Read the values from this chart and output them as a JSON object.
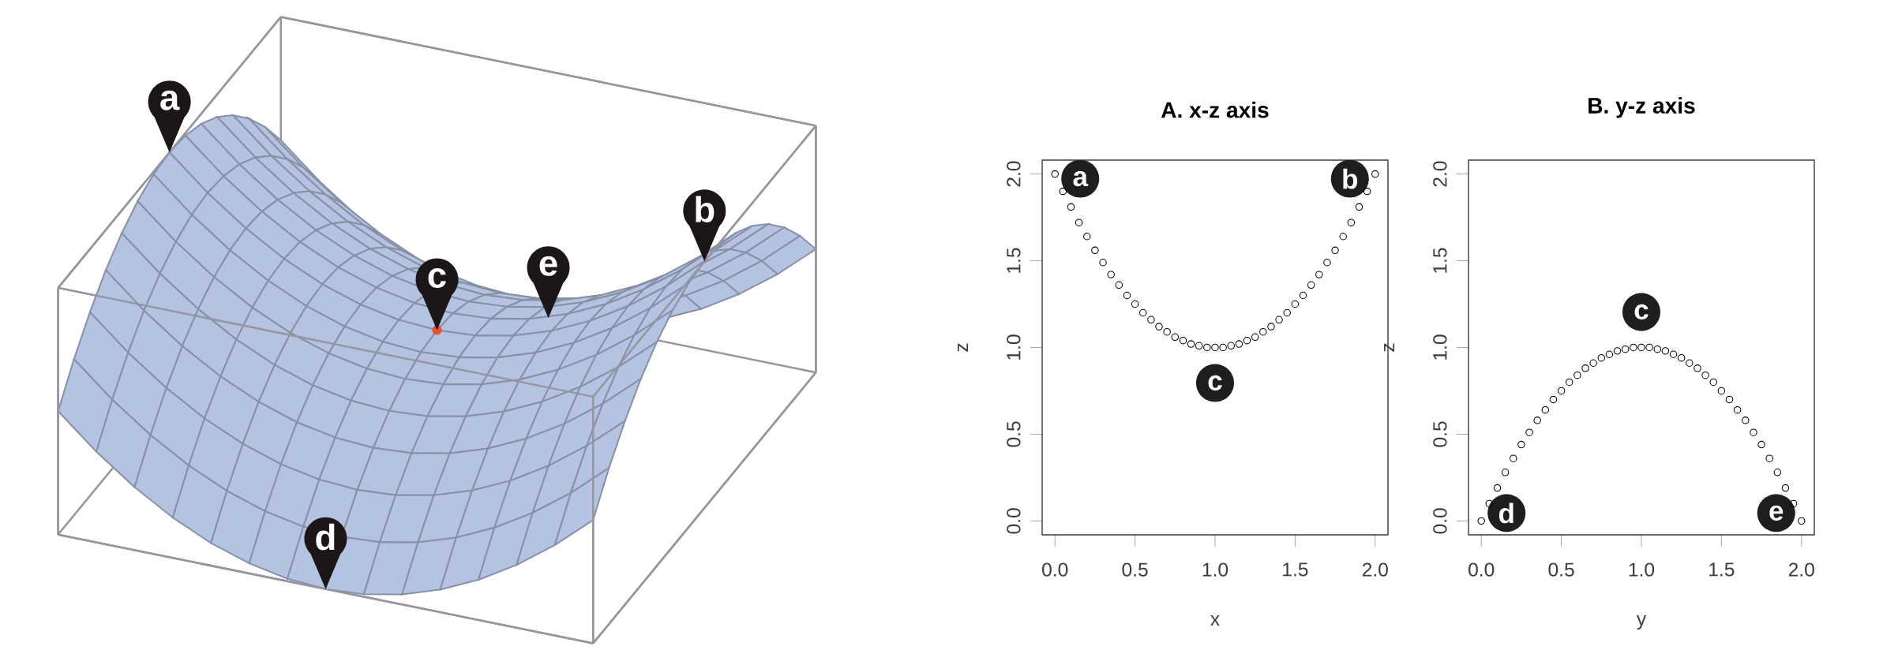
{
  "chart_data": [
    {
      "type": "other",
      "annotations": [
        "a",
        "b",
        "c",
        "d",
        "e"
      ]
    },
    {
      "type": "scatter",
      "title": "A. x-z axis",
      "xlabel": "x",
      "ylabel": "z",
      "marker": "circle",
      "color": "#000000",
      "x": [
        0,
        0.05,
        0.1,
        0.15,
        0.2,
        0.25,
        0.3,
        0.35,
        0.4,
        0.45,
        0.5,
        0.55,
        0.6,
        0.65,
        0.7,
        0.75,
        0.8,
        0.85,
        0.9,
        0.95,
        1,
        1.05,
        1.1,
        1.15,
        1.2,
        1.25,
        1.3,
        1.35,
        1.4,
        1.45,
        1.5,
        1.55,
        1.6,
        1.65,
        1.7,
        1.75,
        1.8,
        1.85,
        1.9,
        1.95,
        2
      ],
      "values": [
        2,
        1.9,
        1.81,
        1.72,
        1.64,
        1.56,
        1.49,
        1.42,
        1.36,
        1.3,
        1.25,
        1.2,
        1.16,
        1.12,
        1.09,
        1.06,
        1.04,
        1.02,
        1.01,
        1.0,
        1.0,
        1.0,
        1.01,
        1.02,
        1.04,
        1.06,
        1.09,
        1.12,
        1.16,
        1.2,
        1.25,
        1.3,
        1.36,
        1.42,
        1.49,
        1.56,
        1.64,
        1.72,
        1.81,
        1.9,
        2
      ],
      "xlim": [
        -0.08,
        2.08
      ],
      "ylim": [
        -0.08,
        2.08
      ],
      "xticks": [
        {
          "value": 0,
          "label": "0.0"
        },
        {
          "value": 0.5,
          "label": "0.5"
        },
        {
          "value": 1,
          "label": "1.0"
        },
        {
          "value": 1.5,
          "label": "1.5"
        },
        {
          "value": 2,
          "label": "2.0"
        }
      ],
      "yticks": [
        {
          "value": 0,
          "label": "0.0"
        },
        {
          "value": 0.5,
          "label": "0.5"
        },
        {
          "value": 1,
          "label": "1.0"
        },
        {
          "value": 1.5,
          "label": "1.5"
        },
        {
          "value": 2,
          "label": "2.0"
        }
      ],
      "annotations": [
        {
          "text": "a",
          "x": 0,
          "y": 2
        },
        {
          "text": "b",
          "x": 2,
          "y": 2
        },
        {
          "text": "c",
          "x": 1,
          "y": 1
        }
      ]
    },
    {
      "type": "scatter",
      "title": "B. y-z axis",
      "xlabel": "y",
      "ylabel": "z",
      "marker": "circle",
      "color": "#000000",
      "x": [
        0,
        0.05,
        0.1,
        0.15,
        0.2,
        0.25,
        0.3,
        0.35,
        0.4,
        0.45,
        0.5,
        0.55,
        0.6,
        0.65,
        0.7,
        0.75,
        0.8,
        0.85,
        0.9,
        0.95,
        1,
        1.05,
        1.1,
        1.15,
        1.2,
        1.25,
        1.3,
        1.35,
        1.4,
        1.45,
        1.5,
        1.55,
        1.6,
        1.65,
        1.7,
        1.75,
        1.8,
        1.85,
        1.9,
        1.95,
        2
      ],
      "values": [
        0,
        0.1,
        0.19,
        0.28,
        0.36,
        0.44,
        0.51,
        0.58,
        0.64,
        0.7,
        0.75,
        0.8,
        0.84,
        0.88,
        0.91,
        0.94,
        0.96,
        0.98,
        0.99,
        1.0,
        1.0,
        1.0,
        0.99,
        0.98,
        0.96,
        0.94,
        0.91,
        0.88,
        0.84,
        0.8,
        0.75,
        0.7,
        0.64,
        0.58,
        0.51,
        0.44,
        0.36,
        0.28,
        0.19,
        0.1,
        0
      ],
      "xlim": [
        -0.08,
        2.08
      ],
      "ylim": [
        -0.08,
        2.08
      ],
      "xticks": [
        {
          "value": 0,
          "label": "0.0"
        },
        {
          "value": 0.5,
          "label": "0.5"
        },
        {
          "value": 1,
          "label": "1.0"
        },
        {
          "value": 1.5,
          "label": "1.5"
        },
        {
          "value": 2,
          "label": "2.0"
        }
      ],
      "yticks": [
        {
          "value": 0,
          "label": "0.0"
        },
        {
          "value": 0.5,
          "label": "0.5"
        },
        {
          "value": 1,
          "label": "1.0"
        },
        {
          "value": 1.5,
          "label": "1.5"
        },
        {
          "value": 2,
          "label": "2.0"
        }
      ],
      "annotations": [
        {
          "text": "c",
          "x": 1,
          "y": 1
        },
        {
          "text": "d",
          "x": 0,
          "y": 0
        },
        {
          "text": "e",
          "x": 2,
          "y": 0
        }
      ]
    }
  ]
}
